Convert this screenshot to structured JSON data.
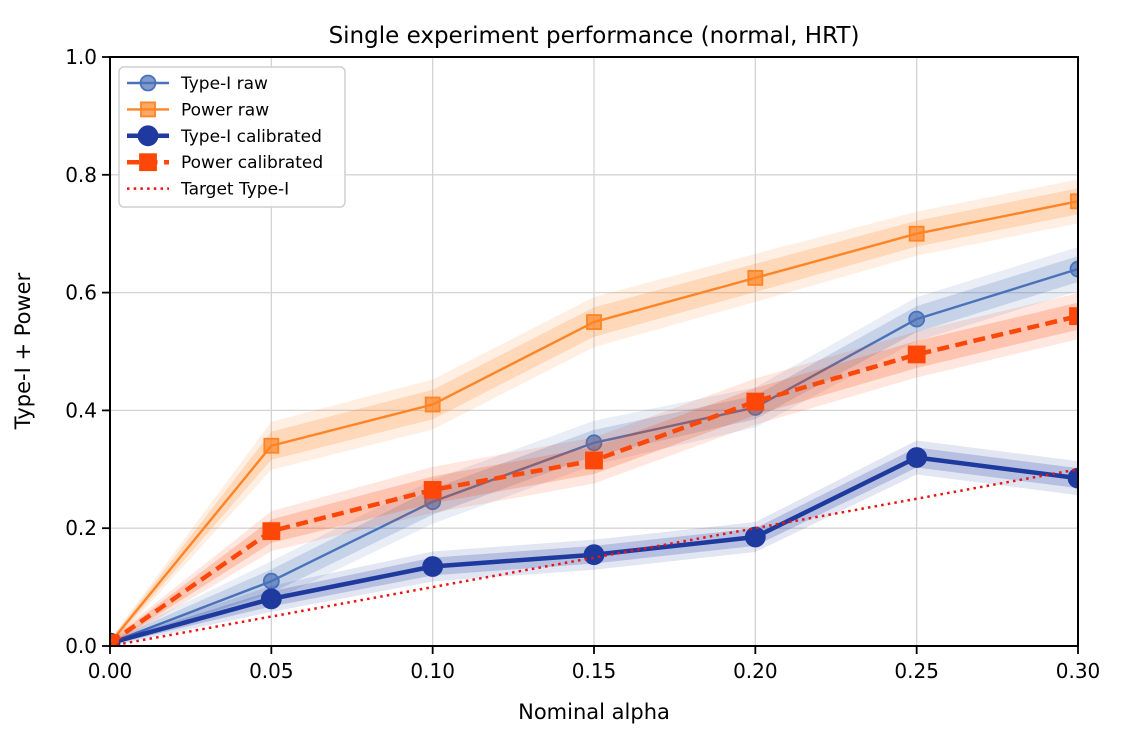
{
  "chart_data": {
    "type": "line",
    "title": "Single experiment performance (normal, HRT)",
    "xlabel": "Nominal alpha",
    "ylabel": "Type-I + Power",
    "xlim": [
      0.0,
      0.3
    ],
    "ylim": [
      0.0,
      1.0
    ],
    "grid": true,
    "legend_position": "upper left",
    "x": [
      0.0,
      0.05,
      0.1,
      0.15,
      0.2,
      0.25,
      0.3
    ],
    "xtick_labels": [
      "0.00",
      "0.05",
      "0.10",
      "0.15",
      "0.20",
      "0.25",
      "0.30"
    ],
    "ytick_values": [
      0.0,
      0.2,
      0.4,
      0.6,
      0.8,
      1.0
    ],
    "ytick_labels": [
      "0.0",
      "0.2",
      "0.4",
      "0.6",
      "0.8",
      "1.0"
    ],
    "series": [
      {
        "name": "Type-I raw",
        "color": "#4a72b8",
        "marker": "circle",
        "linestyle": "solid",
        "linewidth": 2.4,
        "markersize": 15,
        "marker_opacity": 0.7,
        "values": [
          0.005,
          0.11,
          0.245,
          0.345,
          0.405,
          0.555,
          0.64
        ],
        "band": [
          0.004,
          0.02,
          0.022,
          0.022,
          0.02,
          0.022,
          0.022
        ]
      },
      {
        "name": "Power raw",
        "color": "#ff8425",
        "marker": "square",
        "linestyle": "solid",
        "linewidth": 2.4,
        "markersize": 14,
        "marker_opacity": 0.7,
        "values": [
          0.005,
          0.34,
          0.41,
          0.55,
          0.625,
          0.7,
          0.755
        ],
        "band": [
          0.004,
          0.024,
          0.025,
          0.025,
          0.024,
          0.022,
          0.022
        ]
      },
      {
        "name": "Type-I calibrated",
        "color": "#1e3a9e",
        "marker": "circle",
        "linestyle": "solid",
        "linewidth": 4.5,
        "markersize": 19,
        "marker_opacity": 1.0,
        "values": [
          0.005,
          0.08,
          0.135,
          0.155,
          0.185,
          0.32,
          0.285
        ],
        "band": [
          0.003,
          0.013,
          0.015,
          0.015,
          0.015,
          0.017,
          0.017
        ]
      },
      {
        "name": "Power calibrated",
        "color": "#fc4708",
        "marker": "square",
        "linestyle": "dashed",
        "linewidth": 4.5,
        "markersize": 16,
        "marker_opacity": 1.0,
        "values": [
          0.005,
          0.195,
          0.265,
          0.315,
          0.415,
          0.495,
          0.56
        ],
        "band": [
          0.004,
          0.02,
          0.023,
          0.023,
          0.023,
          0.023,
          0.023
        ]
      },
      {
        "name": "Target Type-I",
        "color": "#ea1313",
        "marker": "none",
        "linestyle": "dotted",
        "linewidth": 2.5,
        "markersize": 0,
        "marker_opacity": 1.0,
        "values": [
          0.0,
          0.05,
          0.1,
          0.15,
          0.2,
          0.25,
          0.3
        ],
        "band": [
          0,
          0,
          0,
          0,
          0,
          0,
          0
        ]
      }
    ],
    "colors": {
      "grid": "#d4d4d4",
      "spine": "#000000",
      "legend_border": "#cfcfcf",
      "background": "#ffffff"
    }
  }
}
